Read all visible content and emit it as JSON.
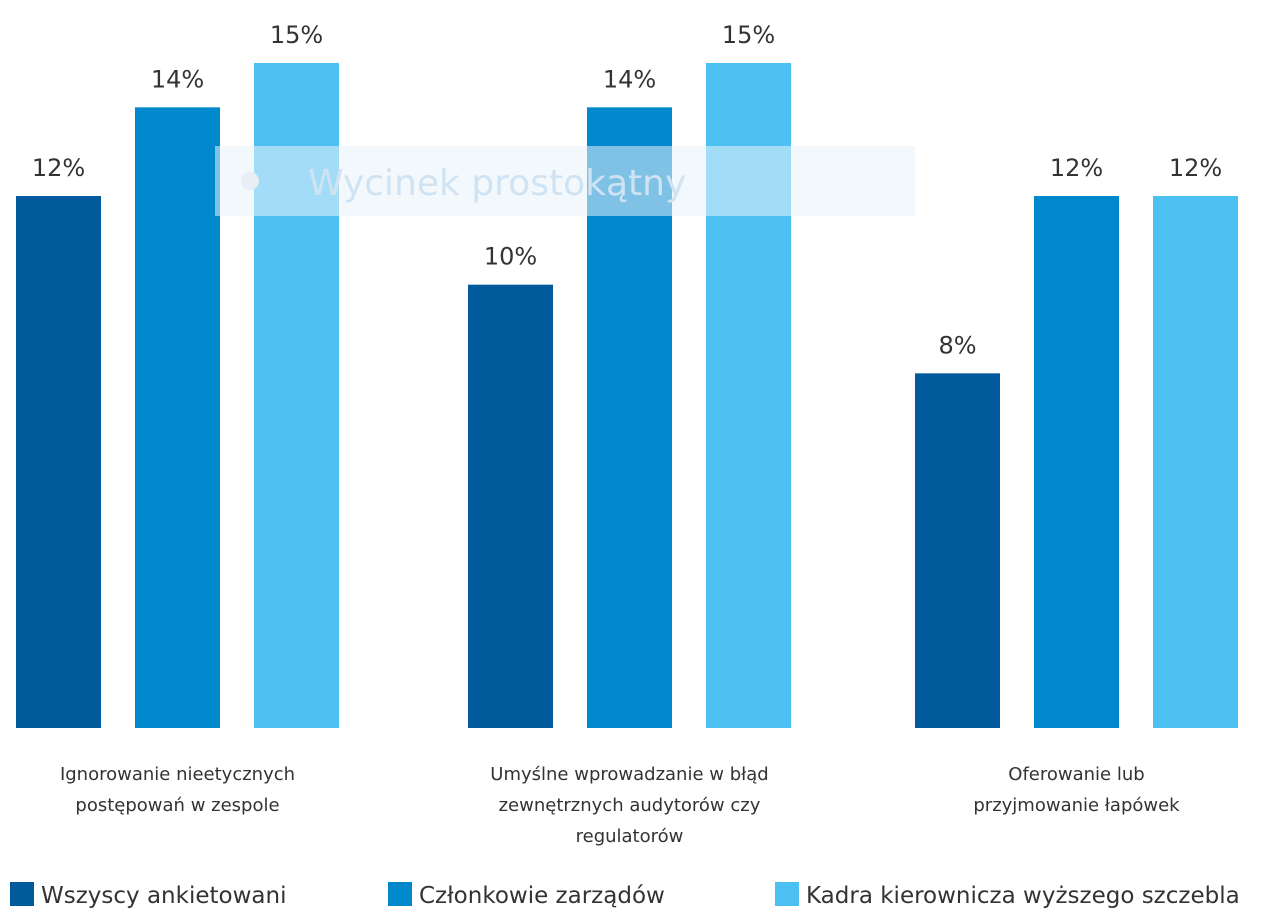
{
  "chart_data": {
    "type": "bar",
    "categories": [
      [
        "Ignorowanie nieetycznych",
        "postępowań w zespole"
      ],
      [
        "Umyślne wprowadzanie w błąd",
        "zewnętrznych audytorów czy",
        "regulatorów"
      ],
      [
        "Oferowanie lub",
        "przyjmowanie łapówek"
      ]
    ],
    "series": [
      {
        "name": "Wszyscy ankietowani",
        "values": [
          12,
          10,
          8
        ],
        "labels": [
          "12%",
          "10%",
          "8%"
        ],
        "color": "#005a9c"
      },
      {
        "name": "Członkowie zarządów",
        "values": [
          14,
          14,
          12
        ],
        "labels": [
          "14%",
          "14%",
          "12%"
        ],
        "color": "#0088cc"
      },
      {
        "name": "Kadra kierownicza wyższego szczebla",
        "values": [
          15,
          15,
          12
        ],
        "labels": [
          "15%",
          "15%",
          "12%"
        ],
        "color": "#4cc0f0"
      }
    ],
    "ylim": [
      0,
      15
    ],
    "grid": false,
    "legend": "bottom"
  },
  "overlay": {
    "text": "Wycinek prostokątny"
  }
}
